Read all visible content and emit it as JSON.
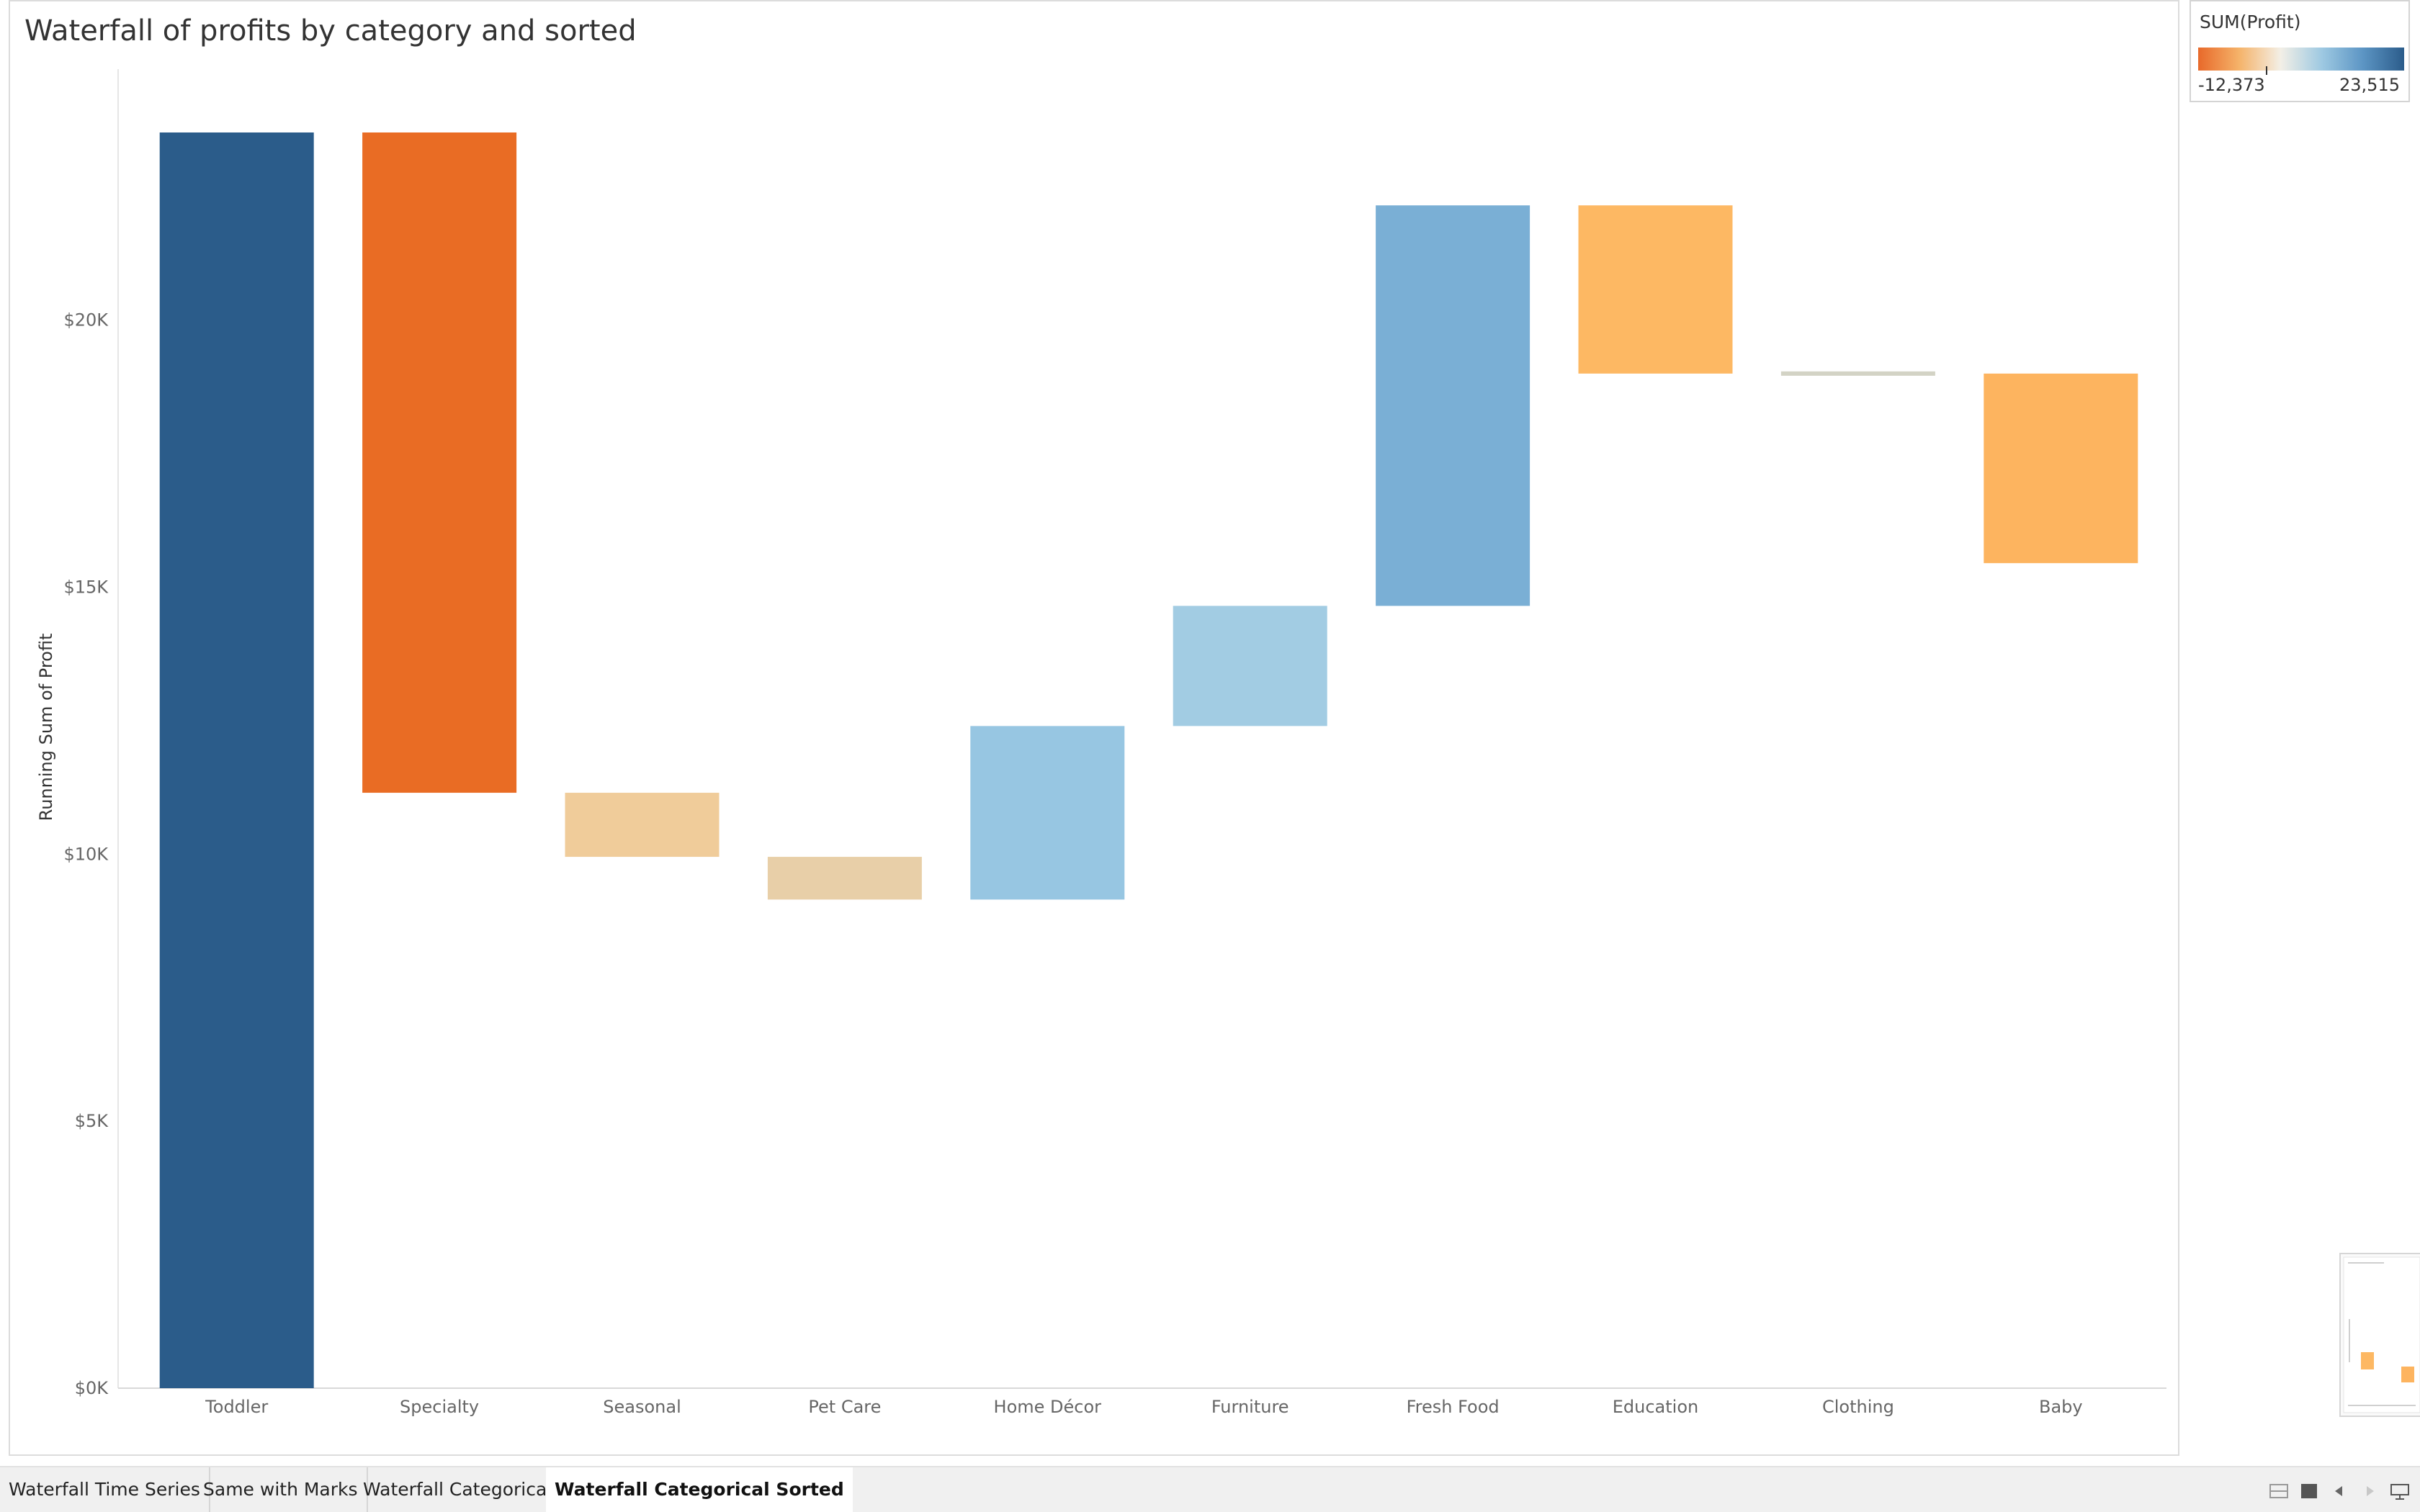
{
  "title": "Waterfall of profits by category and sorted",
  "legend": {
    "title": "SUM(Profit)",
    "min_label": "-12,373",
    "max_label": "23,515",
    "gradient": [
      "#e8692a",
      "#f5b36a",
      "#f3efe6",
      "#9ec9e2",
      "#5c95c4",
      "#2b5c8a"
    ]
  },
  "chart_data": {
    "type": "bar",
    "subtype": "waterfall",
    "categories": [
      "Toddler",
      "Specialty",
      "Seasonal",
      "Pet Care",
      "Home Décor",
      "Furniture",
      "Fresh Food",
      "Education",
      "Clothing",
      "Baby"
    ],
    "series": [
      {
        "start": [
          0,
          23515,
          11150,
          9950,
          9150,
          12400,
          14650,
          22150,
          19000,
          19000
        ],
        "end": [
          23515,
          11150,
          9950,
          9150,
          12400,
          14650,
          22150,
          19000,
          19000,
          15450
        ],
        "colors": [
          "#2b5c8a",
          "#e96c24",
          "#f0cc9a",
          "#e8cfa8",
          "#97c6e2",
          "#a2cce3",
          "#7aafd5",
          "#fdb863",
          "#d3d3c5",
          "#fdb45f"
        ]
      }
    ],
    "ylabel": "Running Sum of Profit",
    "yticks": [
      0,
      5000,
      10000,
      15000,
      20000
    ],
    "ytick_labels": [
      "$0K",
      "$5K",
      "$10K",
      "$15K",
      "$20K"
    ],
    "ylim": [
      0,
      25000
    ],
    "grid": false,
    "legend_position": "top-right"
  },
  "tabs": [
    {
      "label": "Waterfall Time Series",
      "active": false
    },
    {
      "label": "Same with Marks",
      "active": false
    },
    {
      "label": "Waterfall Categorical",
      "active": false
    },
    {
      "label": "Waterfall Categorical Sorted",
      "active": true
    }
  ],
  "toolbar_icons": [
    "sheet-sorter-icon",
    "filmstrip-icon",
    "previous-sheet-icon",
    "next-sheet-icon",
    "presentation-mode-icon"
  ]
}
